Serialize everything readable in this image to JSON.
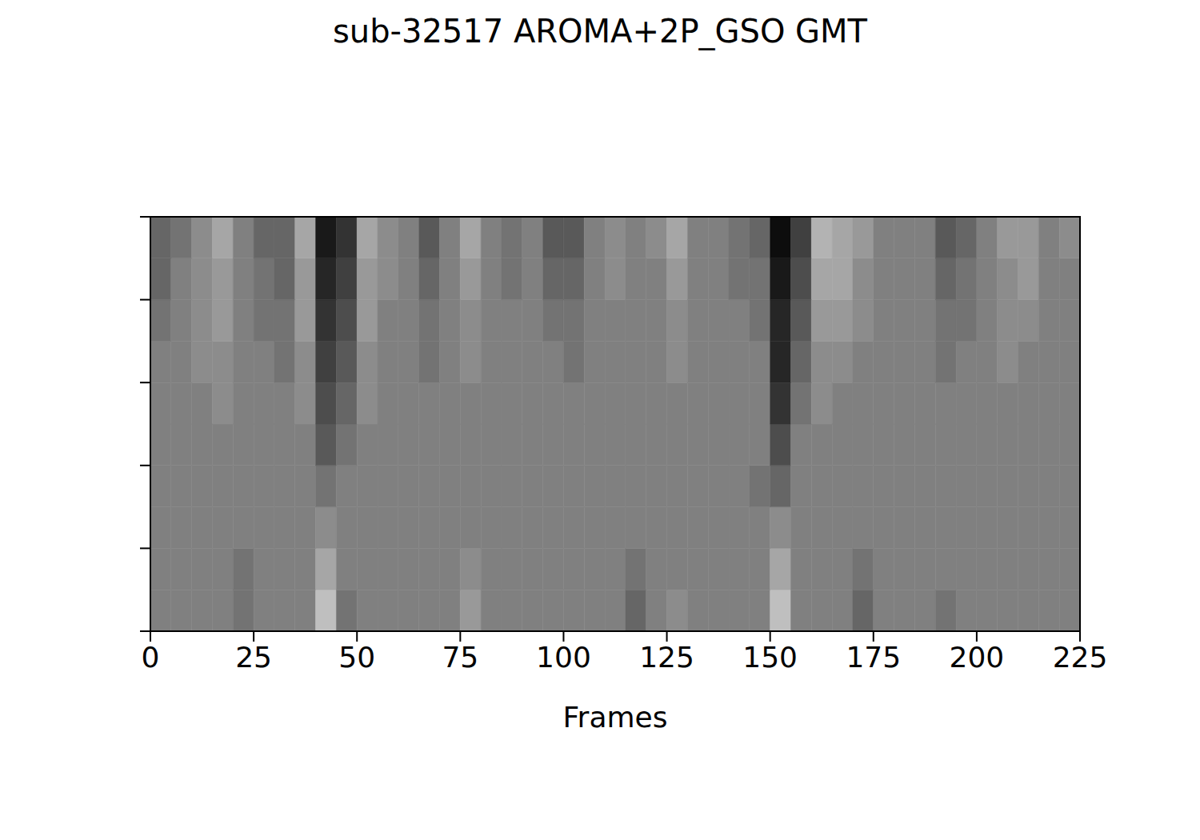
{
  "chart_data": {
    "type": "heatmap",
    "title": "sub-32517 AROMA+2P_GSO GMT",
    "xlabel": "Frames",
    "xlim": [
      0,
      225
    ],
    "xticks": [
      0,
      25,
      50,
      75,
      100,
      125,
      150,
      175,
      200,
      225
    ],
    "ylim": [
      0,
      5
    ],
    "yticks": [
      0,
      1,
      2,
      3,
      4,
      5
    ],
    "tick_labels": "x",
    "color": "gray",
    "zlim": [
      -1,
      1
    ],
    "x_bins": [
      0,
      5,
      10,
      15,
      20,
      25,
      30,
      35,
      40,
      45,
      50,
      55,
      60,
      65,
      70,
      75,
      80,
      85,
      90,
      95,
      100,
      105,
      110,
      115,
      120,
      125,
      130,
      135,
      140,
      145,
      150,
      155,
      160,
      165,
      170,
      175,
      180,
      185,
      190,
      195,
      200,
      205,
      210,
      215,
      220,
      225
    ],
    "y_bins": [
      0,
      0.5,
      1,
      1.5,
      2,
      2.5,
      3,
      3.5,
      4,
      4.5,
      5
    ],
    "cells": [
      [
        0,
        0,
        0,
        0,
        -0.1,
        0,
        0,
        0,
        0.5,
        -0.1,
        0,
        0,
        0,
        0,
        0,
        0.2,
        0,
        0,
        0,
        0,
        0,
        0,
        0,
        -0.2,
        0,
        0.1,
        0,
        0,
        0,
        0,
        0.5,
        0,
        0,
        0,
        -0.2,
        0,
        0,
        0,
        -0.1,
        0,
        0,
        0,
        0,
        0,
        0
      ],
      [
        0,
        0,
        0,
        0,
        -0.1,
        0,
        0,
        0,
        0.3,
        0,
        0,
        0,
        0,
        0,
        0,
        0.1,
        0,
        0,
        0,
        0,
        0,
        0,
        0,
        -0.1,
        0,
        0,
        0,
        0,
        0,
        0,
        0.3,
        0,
        0,
        0,
        -0.1,
        0,
        0,
        0,
        0,
        0,
        0,
        0,
        0,
        0,
        0
      ],
      [
        0,
        0,
        0,
        0,
        0,
        0,
        0,
        0,
        0.1,
        0,
        0,
        0,
        0,
        0,
        0,
        0,
        0,
        0,
        0,
        0,
        0,
        0,
        0,
        0,
        0,
        0,
        0,
        0,
        0,
        0,
        0.1,
        0,
        0,
        0,
        0,
        0,
        0,
        0,
        0,
        0,
        0,
        0,
        0,
        0,
        0
      ],
      [
        0,
        0,
        0,
        0,
        0,
        0,
        0,
        0,
        -0.1,
        0,
        0,
        0,
        0,
        0,
        0,
        0,
        0,
        0,
        0,
        0,
        0,
        0,
        0,
        0,
        0,
        0,
        0,
        0,
        0,
        -0.1,
        -0.2,
        0,
        0,
        0,
        0,
        0,
        0,
        0,
        0,
        0,
        0,
        0,
        0,
        0,
        0
      ],
      [
        0,
        0,
        0,
        0,
        0,
        0,
        0,
        0,
        -0.3,
        -0.1,
        0,
        0,
        0,
        0,
        0,
        0,
        0,
        0,
        0,
        0,
        0,
        0,
        0,
        0,
        0,
        0,
        0,
        0,
        0,
        0,
        -0.4,
        0,
        0,
        0,
        0,
        0,
        0,
        0,
        0,
        0,
        0,
        0,
        0,
        0,
        0
      ],
      [
        0,
        0,
        0,
        0.1,
        0,
        0,
        0,
        0.1,
        -0.4,
        -0.2,
        0.1,
        0,
        0,
        0,
        0,
        0,
        0,
        0,
        0,
        0,
        0,
        0,
        0,
        0,
        0,
        0,
        0,
        0,
        0,
        0,
        -0.6,
        -0.1,
        0.1,
        0,
        0,
        0,
        0,
        0,
        0,
        0,
        0,
        0,
        0,
        0,
        0
      ],
      [
        0,
        0,
        0.1,
        0.1,
        0,
        0,
        -0.1,
        0.1,
        -0.5,
        -0.3,
        0.1,
        0,
        0,
        -0.1,
        0,
        0.1,
        0,
        0,
        0,
        0,
        -0.1,
        0,
        0,
        0,
        0,
        0.1,
        0,
        0,
        0,
        0,
        -0.7,
        -0.2,
        0.1,
        0.1,
        0,
        0,
        0,
        0,
        -0.1,
        0,
        0,
        0.1,
        0,
        0,
        0
      ],
      [
        -0.1,
        0,
        0.1,
        0.2,
        0,
        -0.1,
        -0.1,
        0.2,
        -0.6,
        -0.4,
        0.2,
        0,
        0,
        -0.1,
        0,
        0.1,
        0,
        0,
        0,
        -0.1,
        -0.1,
        0,
        0,
        0,
        0,
        0.1,
        0,
        0,
        0,
        -0.1,
        -0.7,
        -0.3,
        0.2,
        0.2,
        0.1,
        0,
        0,
        0,
        -0.1,
        -0.1,
        0,
        0.1,
        0.1,
        0,
        0
      ],
      [
        -0.2,
        0,
        0.1,
        0.2,
        0,
        -0.1,
        -0.2,
        0.2,
        -0.7,
        -0.5,
        0.2,
        0.1,
        0,
        -0.2,
        0,
        0.2,
        0,
        -0.1,
        0,
        -0.2,
        -0.2,
        0,
        0.1,
        0,
        0,
        0.2,
        0,
        0,
        -0.1,
        -0.1,
        -0.8,
        -0.4,
        0.3,
        0.3,
        0.1,
        0,
        0,
        0,
        -0.2,
        -0.1,
        0,
        0.1,
        0.2,
        0,
        0
      ],
      [
        -0.2,
        -0.1,
        0.1,
        0.3,
        0,
        -0.2,
        -0.2,
        0.3,
        -0.8,
        -0.6,
        0.3,
        0.1,
        0,
        -0.3,
        0,
        0.3,
        0,
        -0.1,
        0,
        -0.3,
        -0.3,
        0,
        0.1,
        0,
        0.1,
        0.3,
        0,
        0,
        -0.1,
        -0.2,
        -0.9,
        -0.5,
        0.4,
        0.3,
        0.2,
        0,
        0,
        0,
        -0.3,
        -0.2,
        0,
        0.2,
        0.2,
        0,
        0.1
      ]
    ]
  }
}
